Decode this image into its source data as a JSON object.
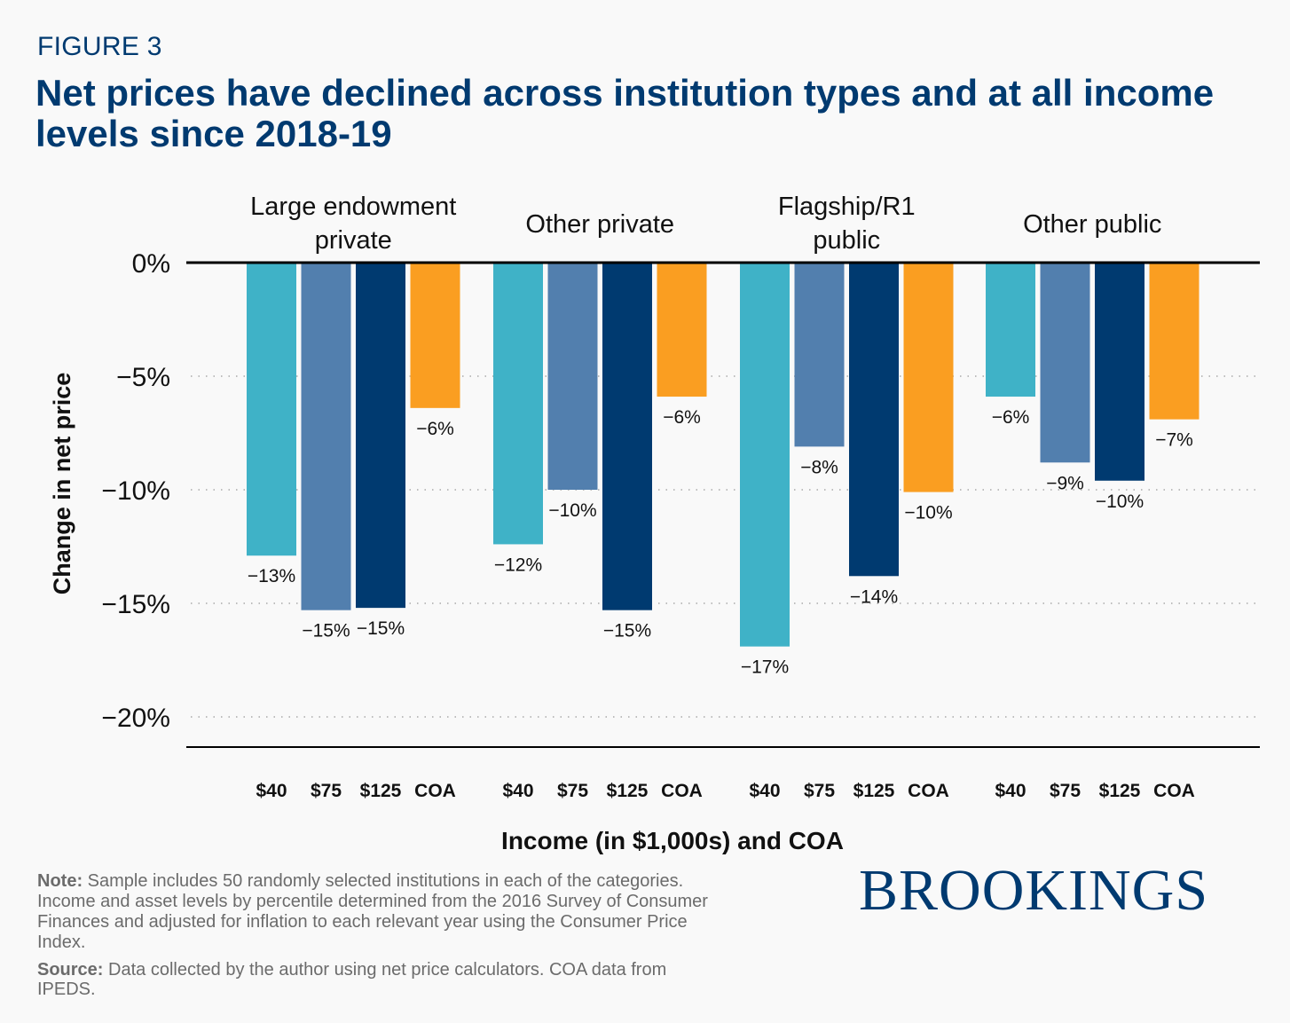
{
  "figure_label": "FIGURE 3",
  "title": "Net prices have declined across institution types and at all income levels since 2018-19",
  "brand": "BROOKINGS",
  "footer": {
    "note_label": "Note:",
    "note_text": " Sample includes 50 randomly selected institutions in each of the categories. Income and asset levels by percentile determined from the 2016 Survey of Consumer Finances and adjusted for inflation to each relevant year using the Consumer Price Index.",
    "source_label": "Source:",
    "source_text": " Data collected by the author using net price calculators. COA data from IPEDS."
  },
  "chart_data": {
    "type": "bar",
    "title": "Net prices have declined across institution types and at all income levels since 2018-19",
    "xlabel": "Income (in $1,000s) and COA",
    "ylabel": "Change in net price",
    "ylim": [
      -21,
      0
    ],
    "yticks": [
      0,
      -5,
      -10,
      -15,
      -20
    ],
    "ytick_labels": [
      "0%",
      "−5%",
      "−10%",
      "−15%",
      "−20%"
    ],
    "grid": true,
    "groups": [
      "Large endowment private",
      "Other private",
      "Flagship/R1 public",
      "Other public"
    ],
    "group_title_lines": [
      [
        "Large endowment",
        "private"
      ],
      [
        "Other private"
      ],
      [
        "Flagship/R1",
        "public"
      ],
      [
        "Other public"
      ]
    ],
    "categories": [
      "$40",
      "$75",
      "$125",
      "COA"
    ],
    "colors": [
      "#3fb2c7",
      "#527fae",
      "#003a70",
      "#fa9e21"
    ],
    "series": [
      {
        "group": "Large endowment private",
        "values": [
          -12.9,
          -15.3,
          -15.2,
          -6.4
        ],
        "labels": [
          "−13%",
          "−15%",
          "−15%",
          "−6%"
        ]
      },
      {
        "group": "Other private",
        "values": [
          -12.4,
          -10.0,
          -15.3,
          -5.9
        ],
        "labels": [
          "−12%",
          "−10%",
          "−15%",
          "−6%"
        ]
      },
      {
        "group": "Flagship/R1 public",
        "values": [
          -16.9,
          -8.1,
          -13.8,
          -10.1
        ],
        "labels": [
          "−17%",
          "−8%",
          "−14%",
          "−10%"
        ]
      },
      {
        "group": "Other public",
        "values": [
          -5.9,
          -8.8,
          -9.6,
          -6.9
        ],
        "labels": [
          "−6%",
          "−9%",
          "−10%",
          "−7%"
        ]
      }
    ]
  }
}
